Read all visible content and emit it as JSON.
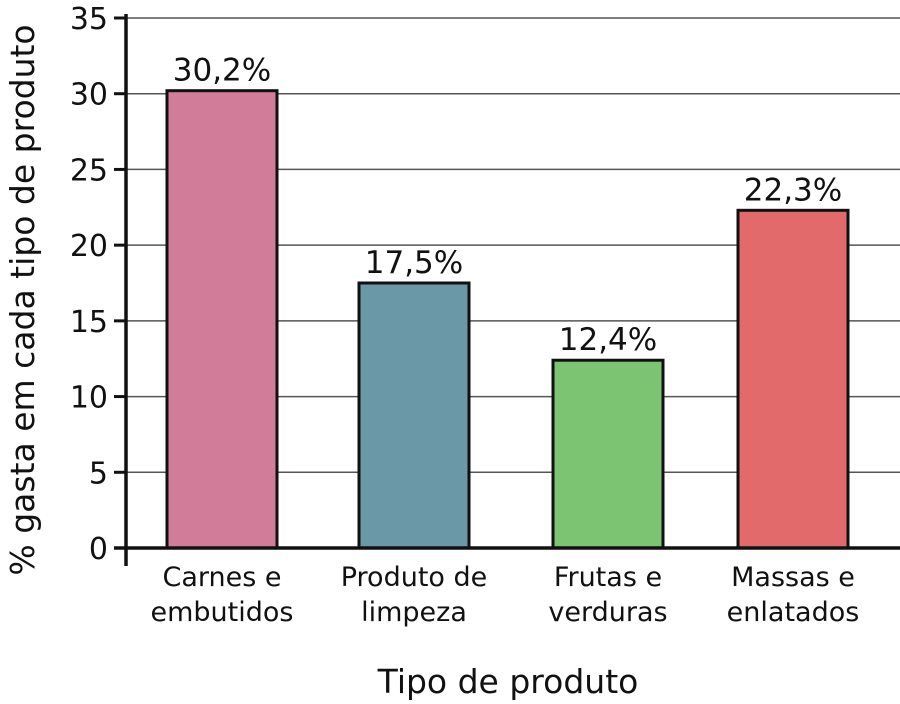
{
  "chart_data": {
    "type": "bar",
    "categories": [
      [
        "Carnes e",
        "embutidos"
      ],
      [
        "Produto de",
        "limpeza"
      ],
      [
        "Frutas e",
        "verduras"
      ],
      [
        "Massas e",
        "enlatados"
      ]
    ],
    "values": [
      30.2,
      17.5,
      12.4,
      22.3
    ],
    "data_labels": [
      "30,2%",
      "17,5%",
      "12,4%",
      "22,3%"
    ],
    "colors": [
      "#d17c98",
      "#6b98a6",
      "#7cc472",
      "#e26a6b"
    ],
    "xlabel": "Tipo de produto",
    "ylabel": "% gasta em cada tipo de produto",
    "ylim": [
      0,
      35
    ],
    "yticks": [
      0,
      5,
      10,
      15,
      20,
      25,
      30,
      35
    ],
    "grid": true
  }
}
